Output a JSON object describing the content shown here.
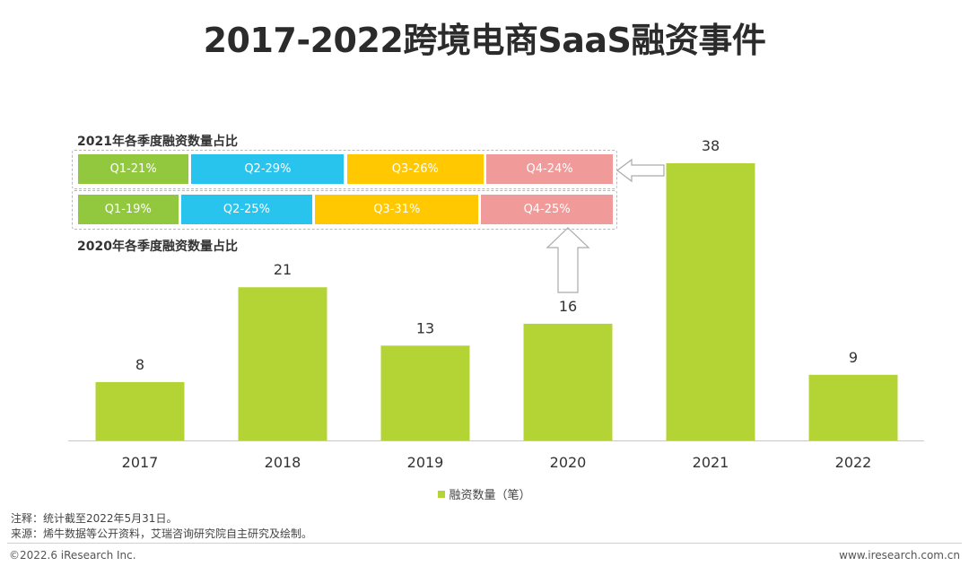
{
  "title": "2017-2022跨境电商SaaS融资事件",
  "chart_data": {
    "type": "bar",
    "categories": [
      "2017",
      "2018",
      "2019",
      "2020",
      "2021",
      "2022"
    ],
    "values": [
      8,
      21,
      13,
      16,
      38,
      9
    ],
    "series_name": "融资数量（笔）",
    "ylim": [
      0,
      40
    ],
    "grid": false,
    "legend_position": "bottom-center",
    "bar_color": "#b4d335",
    "inset_2021": {
      "label": "2021年各季度融资数量占比",
      "segments": [
        {
          "text": "Q1-21%",
          "value": 21,
          "color": "#92c83e"
        },
        {
          "text": "Q2-29%",
          "value": 29,
          "color": "#29c4ee"
        },
        {
          "text": "Q3-26%",
          "value": 26,
          "color": "#ffc800"
        },
        {
          "text": "Q4-24%",
          "value": 24,
          "color": "#f09a9a"
        }
      ]
    },
    "inset_2020": {
      "label": "2020年各季度融资数量占比",
      "segments": [
        {
          "text": "Q1-19%",
          "value": 19,
          "color": "#92c83e"
        },
        {
          "text": "Q2-25%",
          "value": 25,
          "color": "#29c4ee"
        },
        {
          "text": "Q3-31%",
          "value": 31,
          "color": "#ffc800"
        },
        {
          "text": "Q4-25%",
          "value": 25,
          "color": "#f09a9a"
        }
      ]
    }
  },
  "notes": {
    "note": "注释：统计截至2022年5月31日。",
    "source": "来源：烯牛数据等公开资料，艾瑞咨询研究院自主研究及绘制。"
  },
  "footer": {
    "copyright": "©2022.6 iResearch Inc.",
    "website": "www.iresearch.com.cn"
  }
}
